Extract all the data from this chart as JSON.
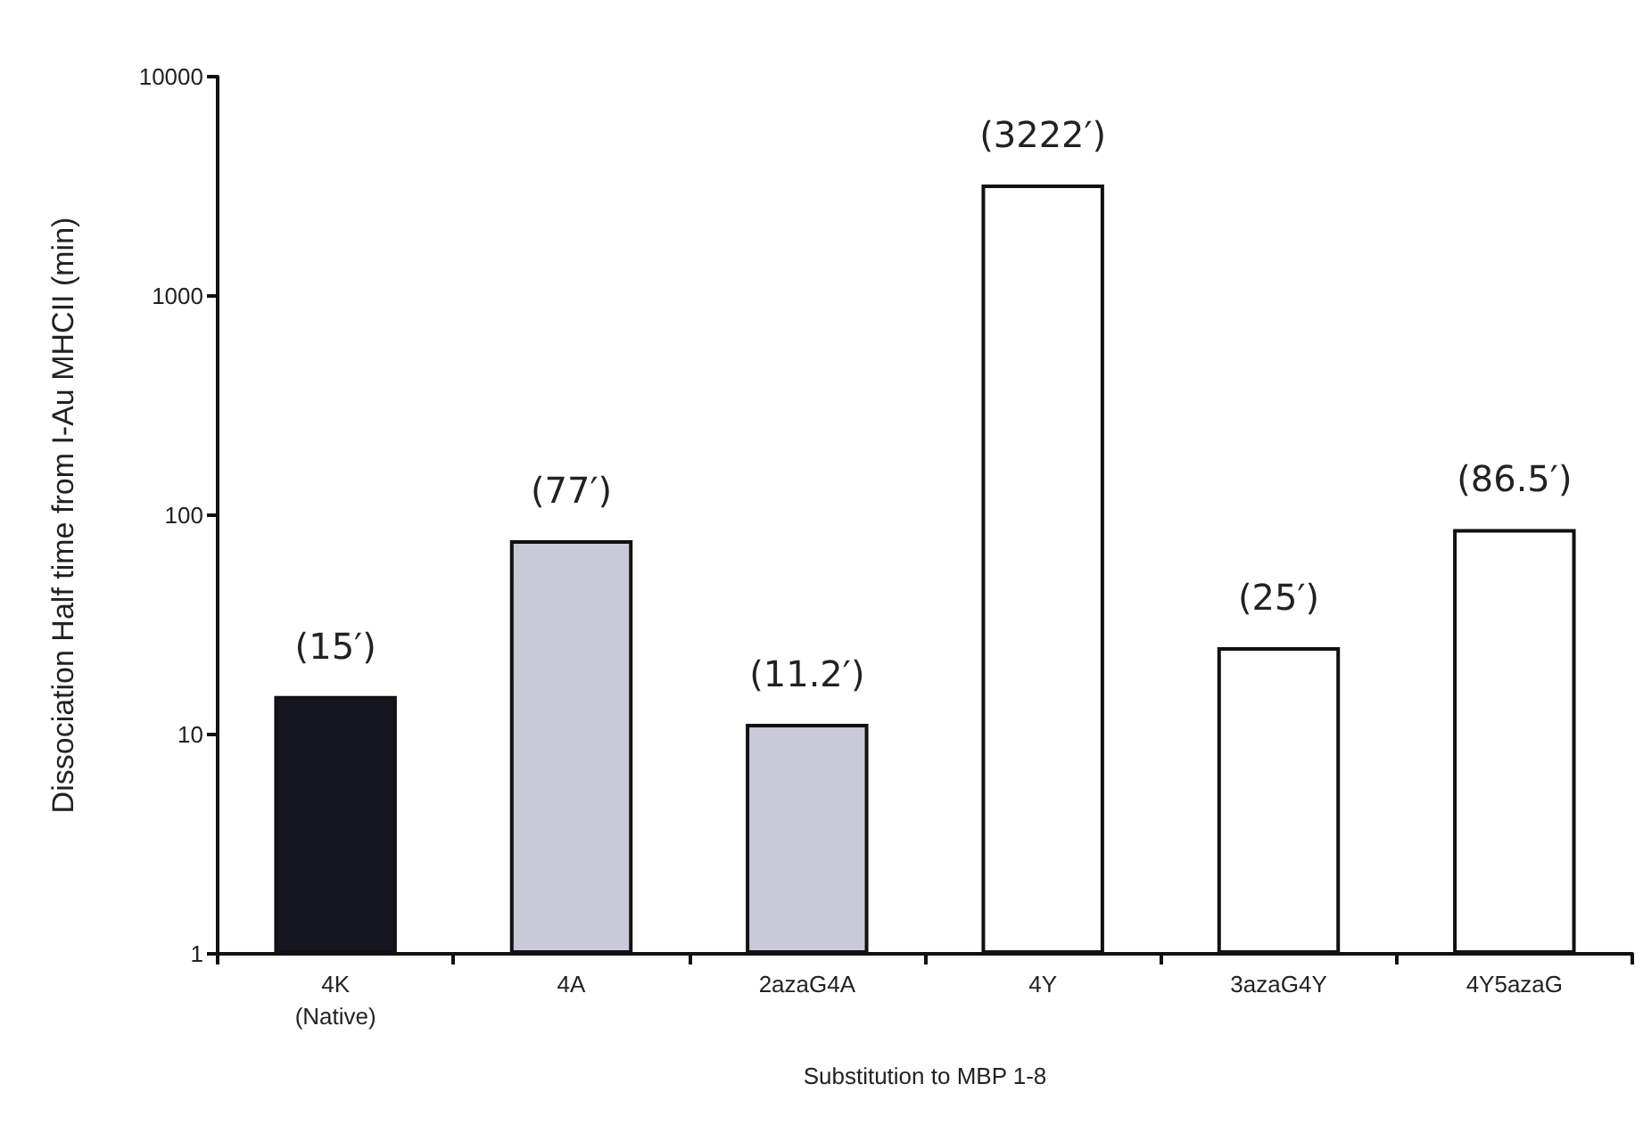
{
  "chart_data": {
    "type": "bar",
    "xlabel": "Substitution to MBP 1-8",
    "ylabel": "Dissociation Half time from I-Au MHCII (min)",
    "categories": [
      "4K\n(Native)",
      "4A",
      "2azaG4A",
      "4Y",
      "3azaG4Y",
      "4Y5azaG"
    ],
    "values": [
      15,
      77,
      11.2,
      3222,
      25,
      86.5
    ],
    "colors": [
      "#161620",
      "#c9c9d8",
      "#c9c9d8",
      "#ffffff",
      "#ffffff",
      "#ffffff"
    ],
    "value_labels": [
      "(15′)",
      "(77′)",
      "(11.2′)",
      "(3222′)",
      "(25′)",
      "(86.5′)"
    ],
    "log": "y",
    "ylim": [
      1,
      10000
    ],
    "yticks": [
      1,
      10,
      100,
      1000,
      10000
    ]
  }
}
